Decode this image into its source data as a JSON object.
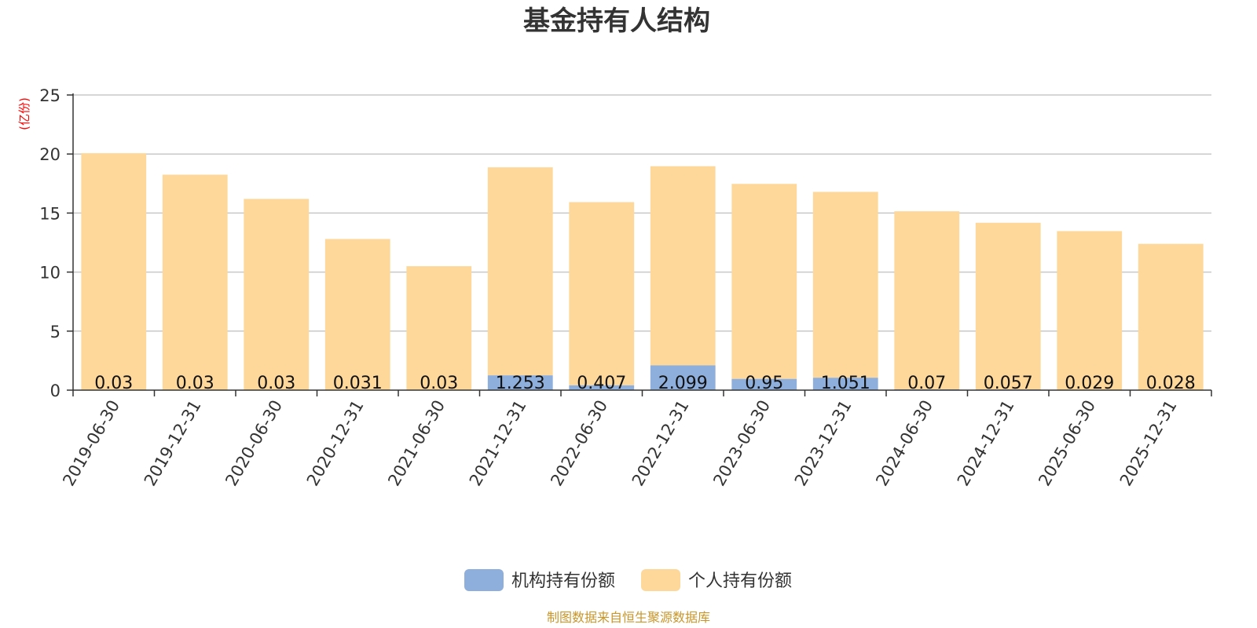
{
  "chart_data": {
    "type": "bar",
    "stacked": true,
    "title": "基金持有人结构",
    "unit_label": "(亿份)",
    "source": "制图数据来自恒生聚源数据库",
    "ylim": [
      0,
      25
    ],
    "yticks": [
      0,
      5,
      10,
      15,
      20,
      25
    ],
    "grid": true,
    "legend_position": "bottom",
    "categories": [
      "2019-06-30",
      "2019-12-31",
      "2020-06-30",
      "2020-12-31",
      "2021-06-30",
      "2021-12-31",
      "2022-06-30",
      "2022-12-31",
      "2023-06-30",
      "2023-12-31",
      "2024-06-30",
      "2024-12-31",
      "2025-06-30",
      "2025-12-31"
    ],
    "series": [
      {
        "name": "机构持有份额",
        "color": "#8eaedc",
        "values": [
          0.03,
          0.03,
          0.03,
          0.031,
          0.03,
          1.253,
          0.407,
          2.099,
          0.95,
          1.051,
          0.07,
          0.057,
          0.029,
          0.028
        ],
        "labels": [
          "0.03",
          "0.03",
          "0.03",
          "0.031",
          "0.03",
          "1.253",
          "0.407",
          "2.099",
          "0.95",
          "1.051",
          "0.07",
          "0.057",
          "0.029",
          "0.028"
        ]
      },
      {
        "name": "个人持有份额",
        "color": "#fdd89a",
        "values": [
          20.04,
          18.22,
          16.17,
          12.77,
          10.47,
          17.62,
          15.52,
          16.87,
          16.52,
          15.74,
          15.08,
          14.12,
          13.44,
          12.36
        ]
      }
    ]
  }
}
